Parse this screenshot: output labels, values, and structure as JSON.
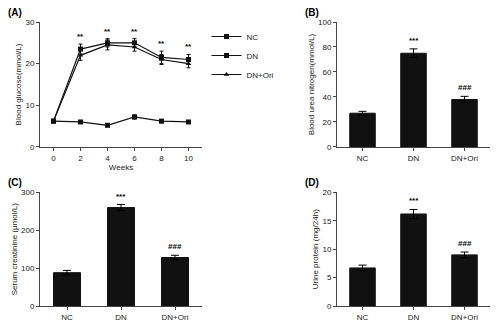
{
  "chart_data": [
    {
      "type": "line",
      "title": "(A)",
      "xlabel": "Weeks",
      "ylabel": "Blood glucose(mmol/L)",
      "x": [
        0,
        2,
        4,
        6,
        8,
        10
      ],
      "series": [
        {
          "name": "NC",
          "color": "#111111",
          "marker": "square",
          "line_style": "solid",
          "values": [
            6.2,
            6.0,
            5.2,
            7.2,
            6.2,
            6.0
          ],
          "errors": [
            0.3,
            0.3,
            0.3,
            0.5,
            0.4,
            0.3
          ]
        },
        {
          "name": "DN",
          "color": "#111111",
          "marker": "square",
          "line_style": "solid",
          "values": [
            6.2,
            23.5,
            25.0,
            25.0,
            21.5,
            21.0
          ],
          "errors": [
            0.3,
            1.2,
            1.0,
            1.0,
            1.5,
            1.2
          ]
        },
        {
          "name": "DN+Ori",
          "color": "#111111",
          "marker": "triangle-up",
          "line_style": "solid",
          "values": [
            6.2,
            22.0,
            24.5,
            24.0,
            21.0,
            20.0
          ],
          "errors": [
            0.3,
            1.2,
            1.2,
            1.0,
            1.2,
            1.0
          ]
        }
      ],
      "annotations": [
        {
          "x": 2,
          "text": "**"
        },
        {
          "x": 4,
          "text": "**"
        },
        {
          "x": 6,
          "text": "**"
        },
        {
          "x": 8,
          "text": "**"
        },
        {
          "x": 10,
          "text": "**"
        }
      ],
      "xlim": [
        -1,
        11
      ],
      "xticks": [
        0,
        2,
        4,
        6,
        8,
        10
      ],
      "ylim": [
        0,
        30
      ],
      "yticks": [
        0,
        10,
        20,
        30
      ],
      "grid": false,
      "legend": "upper right"
    },
    {
      "type": "bar",
      "title": "(B)",
      "ylabel": "Blood urea nitrogen(mmol/L)",
      "categories": [
        "NC",
        "DN",
        "DN+Ori"
      ],
      "values": [
        27.0,
        75.0,
        38.0
      ],
      "errors": [
        1.5,
        3.5,
        2.5
      ],
      "color": "#111111",
      "annotations": [
        {
          "x": "DN",
          "text": "***"
        },
        {
          "x": "DN+Ori",
          "text": "###"
        }
      ],
      "ylim": [
        0,
        100
      ],
      "yticks": [
        0,
        20,
        40,
        60,
        80,
        100
      ],
      "grid": false
    },
    {
      "type": "bar",
      "title": "(C)",
      "ylabel": "Serum creatinine (μmol/L)",
      "categories": [
        "NC",
        "DN",
        "DN+Ori"
      ],
      "values": [
        88.0,
        260.0,
        128.0
      ],
      "errors": [
        6.0,
        8.0,
        6.0
      ],
      "color": "#111111",
      "annotations": [
        {
          "x": "DN",
          "text": "***"
        },
        {
          "x": "DN+Ori",
          "text": "###"
        }
      ],
      "ylim": [
        0,
        300
      ],
      "yticks": [
        0,
        100,
        200,
        300
      ],
      "grid": false
    },
    {
      "type": "bar",
      "title": "(D)",
      "ylabel": "Urine protein (mg/24h)",
      "categories": [
        "NC",
        "DN",
        "DN+Ori"
      ],
      "values": [
        6.7,
        16.2,
        9.0
      ],
      "errors": [
        0.5,
        0.8,
        0.5
      ],
      "color": "#111111",
      "annotations": [
        {
          "x": "DN",
          "text": "***"
        },
        {
          "x": "DN+Ori",
          "text": "###"
        }
      ],
      "ylim": [
        0,
        20
      ],
      "yticks": [
        0,
        5,
        10,
        15,
        20
      ],
      "grid": false
    }
  ]
}
